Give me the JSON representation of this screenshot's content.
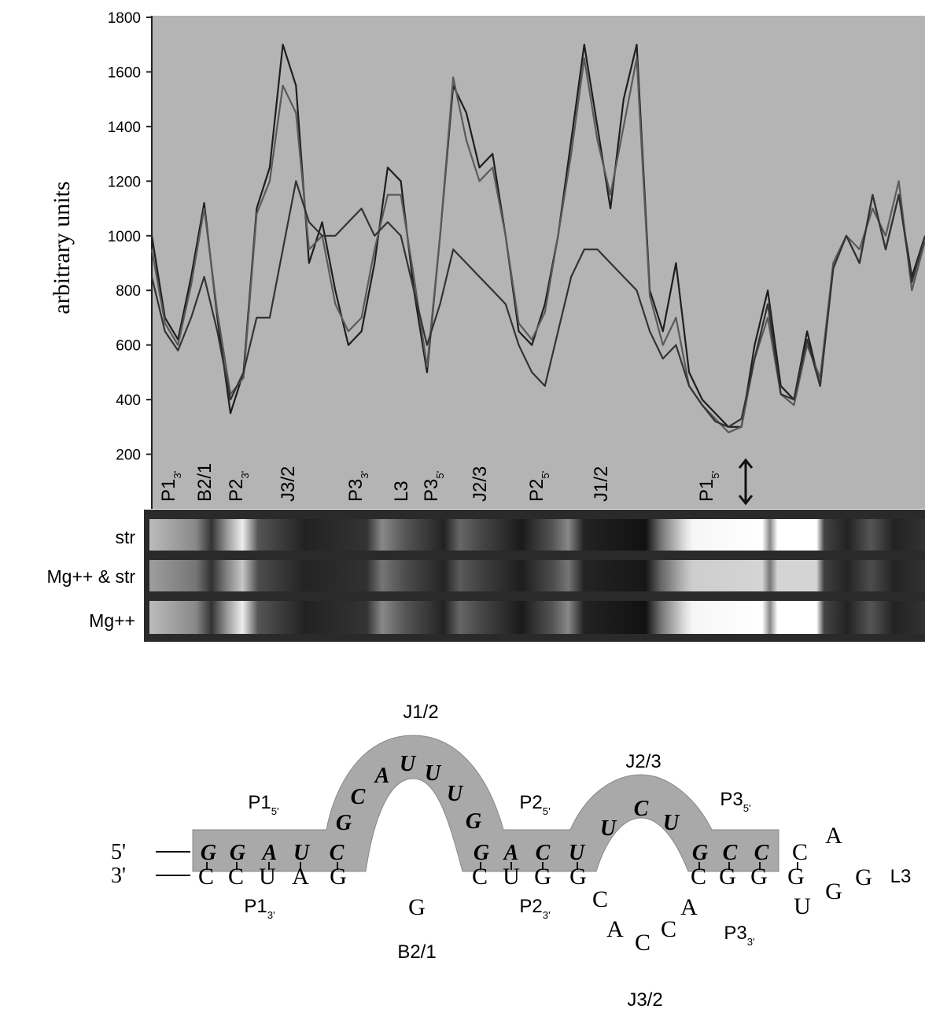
{
  "chart_data": {
    "type": "line",
    "y_label": "arbitrary units",
    "ylim": [
      0,
      1800
    ],
    "yticks": [
      200,
      400,
      600,
      800,
      1000,
      1200,
      1400,
      1600,
      1800
    ],
    "series": [
      {
        "color": "#1e1e1e",
        "values": [
          1000,
          700,
          620,
          850,
          1120,
          700,
          350,
          500,
          1100,
          1250,
          1700,
          1550,
          900,
          1050,
          800,
          600,
          650,
          900,
          1250,
          1200,
          800,
          500,
          1000,
          1550,
          1450,
          1250,
          1300,
          1000,
          650,
          600,
          750,
          1000,
          1350,
          1700,
          1400,
          1100,
          1500,
          1700,
          800,
          650,
          900,
          500,
          400,
          350,
          300,
          300,
          600,
          800,
          450,
          400,
          650,
          450,
          900,
          1000,
          900,
          1150,
          950,
          1150,
          850,
          1000
        ]
      },
      {
        "color": "#5a5a5a",
        "values": [
          950,
          680,
          600,
          820,
          1100,
          720,
          420,
          480,
          1080,
          1200,
          1550,
          1450,
          950,
          1000,
          750,
          650,
          700,
          950,
          1150,
          1150,
          850,
          520,
          1000,
          1580,
          1350,
          1200,
          1250,
          1000,
          680,
          620,
          720,
          1000,
          1300,
          1650,
          1350,
          1150,
          1400,
          1650,
          780,
          600,
          700,
          450,
          380,
          330,
          280,
          300,
          550,
          700,
          420,
          380,
          600,
          480,
          900,
          1000,
          950,
          1100,
          1000,
          1200,
          800,
          980
        ]
      },
      {
        "color": "#333333",
        "values": [
          850,
          650,
          580,
          700,
          850,
          650,
          400,
          500,
          700,
          700,
          950,
          1200,
          1050,
          1000,
          1000,
          1050,
          1100,
          1000,
          1050,
          1000,
          800,
          600,
          750,
          950,
          900,
          850,
          800,
          750,
          600,
          500,
          450,
          650,
          850,
          950,
          950,
          900,
          850,
          800,
          650,
          550,
          600,
          450,
          380,
          320,
          300,
          330,
          550,
          750,
          420,
          400,
          620,
          450,
          880,
          1000,
          900,
          1150,
          950,
          1150,
          830,
          1000
        ]
      }
    ],
    "region_labels": [
      {
        "text": "P1",
        "sub": "3'"
      },
      {
        "text": "B2/1"
      },
      {
        "text": "P2",
        "sub": "3'"
      },
      {
        "text": "J3/2"
      },
      {
        "text": "P3",
        "sub": "3'"
      },
      {
        "text": "L3"
      },
      {
        "text": "P3",
        "sub": "5'"
      },
      {
        "text": "J2/3"
      },
      {
        "text": "P2",
        "sub": "5'"
      },
      {
        "text": "J1/2"
      },
      {
        "text": "P1",
        "sub": "5'"
      }
    ],
    "lane_labels": [
      "str",
      "Mg++ & str",
      "Mg++"
    ]
  },
  "diagram": {
    "end_5": "5'",
    "end_3": "3'",
    "protected": [
      "G",
      "G",
      "A",
      "U",
      "C",
      "G",
      "C",
      "A",
      "U",
      "U",
      "U",
      "G",
      "G",
      "A",
      "C",
      "U",
      "U",
      "C",
      "U",
      "G",
      "C",
      "C"
    ],
    "loop": [
      "C",
      "A",
      "G",
      "G",
      "U"
    ],
    "bottom": [
      "C",
      "C",
      "U",
      "A",
      "G",
      "C",
      "U",
      "G",
      "G",
      "C",
      "A",
      "C",
      "C",
      "A",
      "C",
      "G",
      "G",
      "G"
    ],
    "bulge": "G",
    "labels": [
      {
        "text": "J1/2"
      },
      {
        "text": "J2/3"
      },
      {
        "text": "P1",
        "sub": "5'"
      },
      {
        "text": "P2",
        "sub": "5'"
      },
      {
        "text": "P3",
        "sub": "5'"
      },
      {
        "text": "P1",
        "sub": "3'"
      },
      {
        "text": "P2",
        "sub": "3'"
      },
      {
        "text": "P3",
        "sub": "3'"
      },
      {
        "text": "B2/1"
      },
      {
        "text": "J3/2"
      },
      {
        "text": "L3"
      }
    ]
  }
}
